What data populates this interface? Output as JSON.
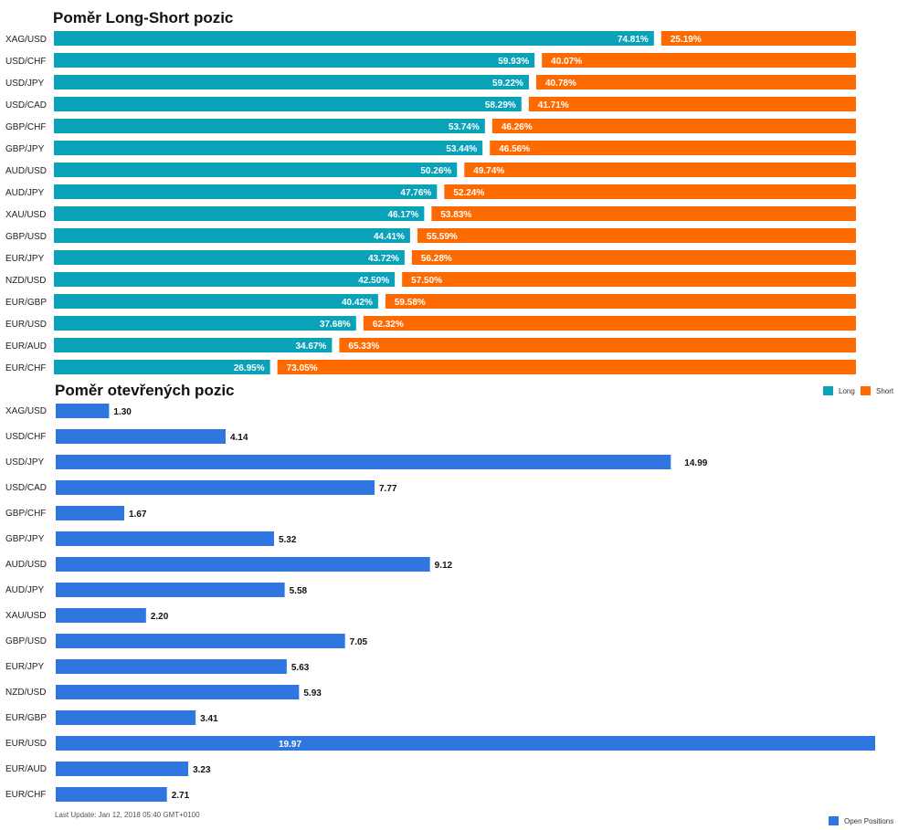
{
  "chart_data": [
    {
      "type": "bar",
      "orientation": "horizontal",
      "stacked": true,
      "title": "Poměr Long-Short pozic",
      "categories": [
        "XAG/USD",
        "USD/CHF",
        "USD/JPY",
        "USD/CAD",
        "GBP/CHF",
        "GBP/JPY",
        "AUD/USD",
        "AUD/JPY",
        "XAU/USD",
        "GBP/USD",
        "EUR/JPY",
        "NZD/USD",
        "EUR/GBP",
        "EUR/USD",
        "EUR/AUD",
        "EUR/CHF"
      ],
      "series": [
        {
          "name": "Long",
          "color": "#0aa2b9",
          "values": [
            74.81,
            59.93,
            59.22,
            58.29,
            53.74,
            53.44,
            50.26,
            47.76,
            46.17,
            44.41,
            43.72,
            42.5,
            40.42,
            37.68,
            34.67,
            26.95
          ],
          "labels": [
            "74.81%",
            "59.93%",
            "59.22%",
            "58.29%",
            "53.74%",
            "53.44%",
            "50.26%",
            "47.76%",
            "46.17%",
            "44.41%",
            "43.72%",
            "42.50%",
            "40.42%",
            "37.68%",
            "34.67%",
            "26.95%"
          ]
        },
        {
          "name": "Short",
          "color": "#ff6a00",
          "values": [
            25.19,
            40.07,
            40.78,
            41.71,
            46.26,
            46.56,
            49.74,
            52.24,
            53.83,
            55.59,
            56.28,
            57.5,
            59.58,
            62.32,
            65.33,
            73.05
          ],
          "labels": [
            "25.19%",
            "40.07%",
            "40.78%",
            "41.71%",
            "46.26%",
            "46.56%",
            "49.74%",
            "52.24%",
            "53.83%",
            "55.59%",
            "56.28%",
            "57.50%",
            "59.58%",
            "62.32%",
            "65.33%",
            "73.05%"
          ]
        }
      ],
      "xlim": [
        0,
        100
      ],
      "legend": "right, below chart"
    },
    {
      "type": "bar",
      "orientation": "horizontal",
      "title": "Poměr otevřených pozic",
      "categories": [
        "XAG/USD",
        "USD/CHF",
        "USD/JPY",
        "USD/CAD",
        "GBP/CHF",
        "GBP/JPY",
        "AUD/USD",
        "AUD/JPY",
        "XAU/USD",
        "GBP/USD",
        "EUR/JPY",
        "NZD/USD",
        "EUR/GBP",
        "EUR/USD",
        "EUR/AUD",
        "EUR/CHF"
      ],
      "series": [
        {
          "name": "Open Positions",
          "color": "#2f76e0",
          "values": [
            1.3,
            4.14,
            14.99,
            7.77,
            1.67,
            5.32,
            9.12,
            5.58,
            2.2,
            7.05,
            5.63,
            5.93,
            3.41,
            19.97,
            3.23,
            2.71
          ],
          "labels": [
            "1.30",
            "4.14",
            "14.99",
            "7.77",
            "1.67",
            "5.32",
            "9.12",
            "5.58",
            "2.20",
            "7.05",
            "5.63",
            "5.93",
            "3.41",
            "19.97",
            "3.23",
            "2.71"
          ]
        }
      ],
      "xlim": [
        0,
        19.97
      ],
      "legend": "bottom-right"
    }
  ],
  "footer": {
    "last_update": "Last Update: Jan 12, 2018 05:40 GMT+0100"
  }
}
